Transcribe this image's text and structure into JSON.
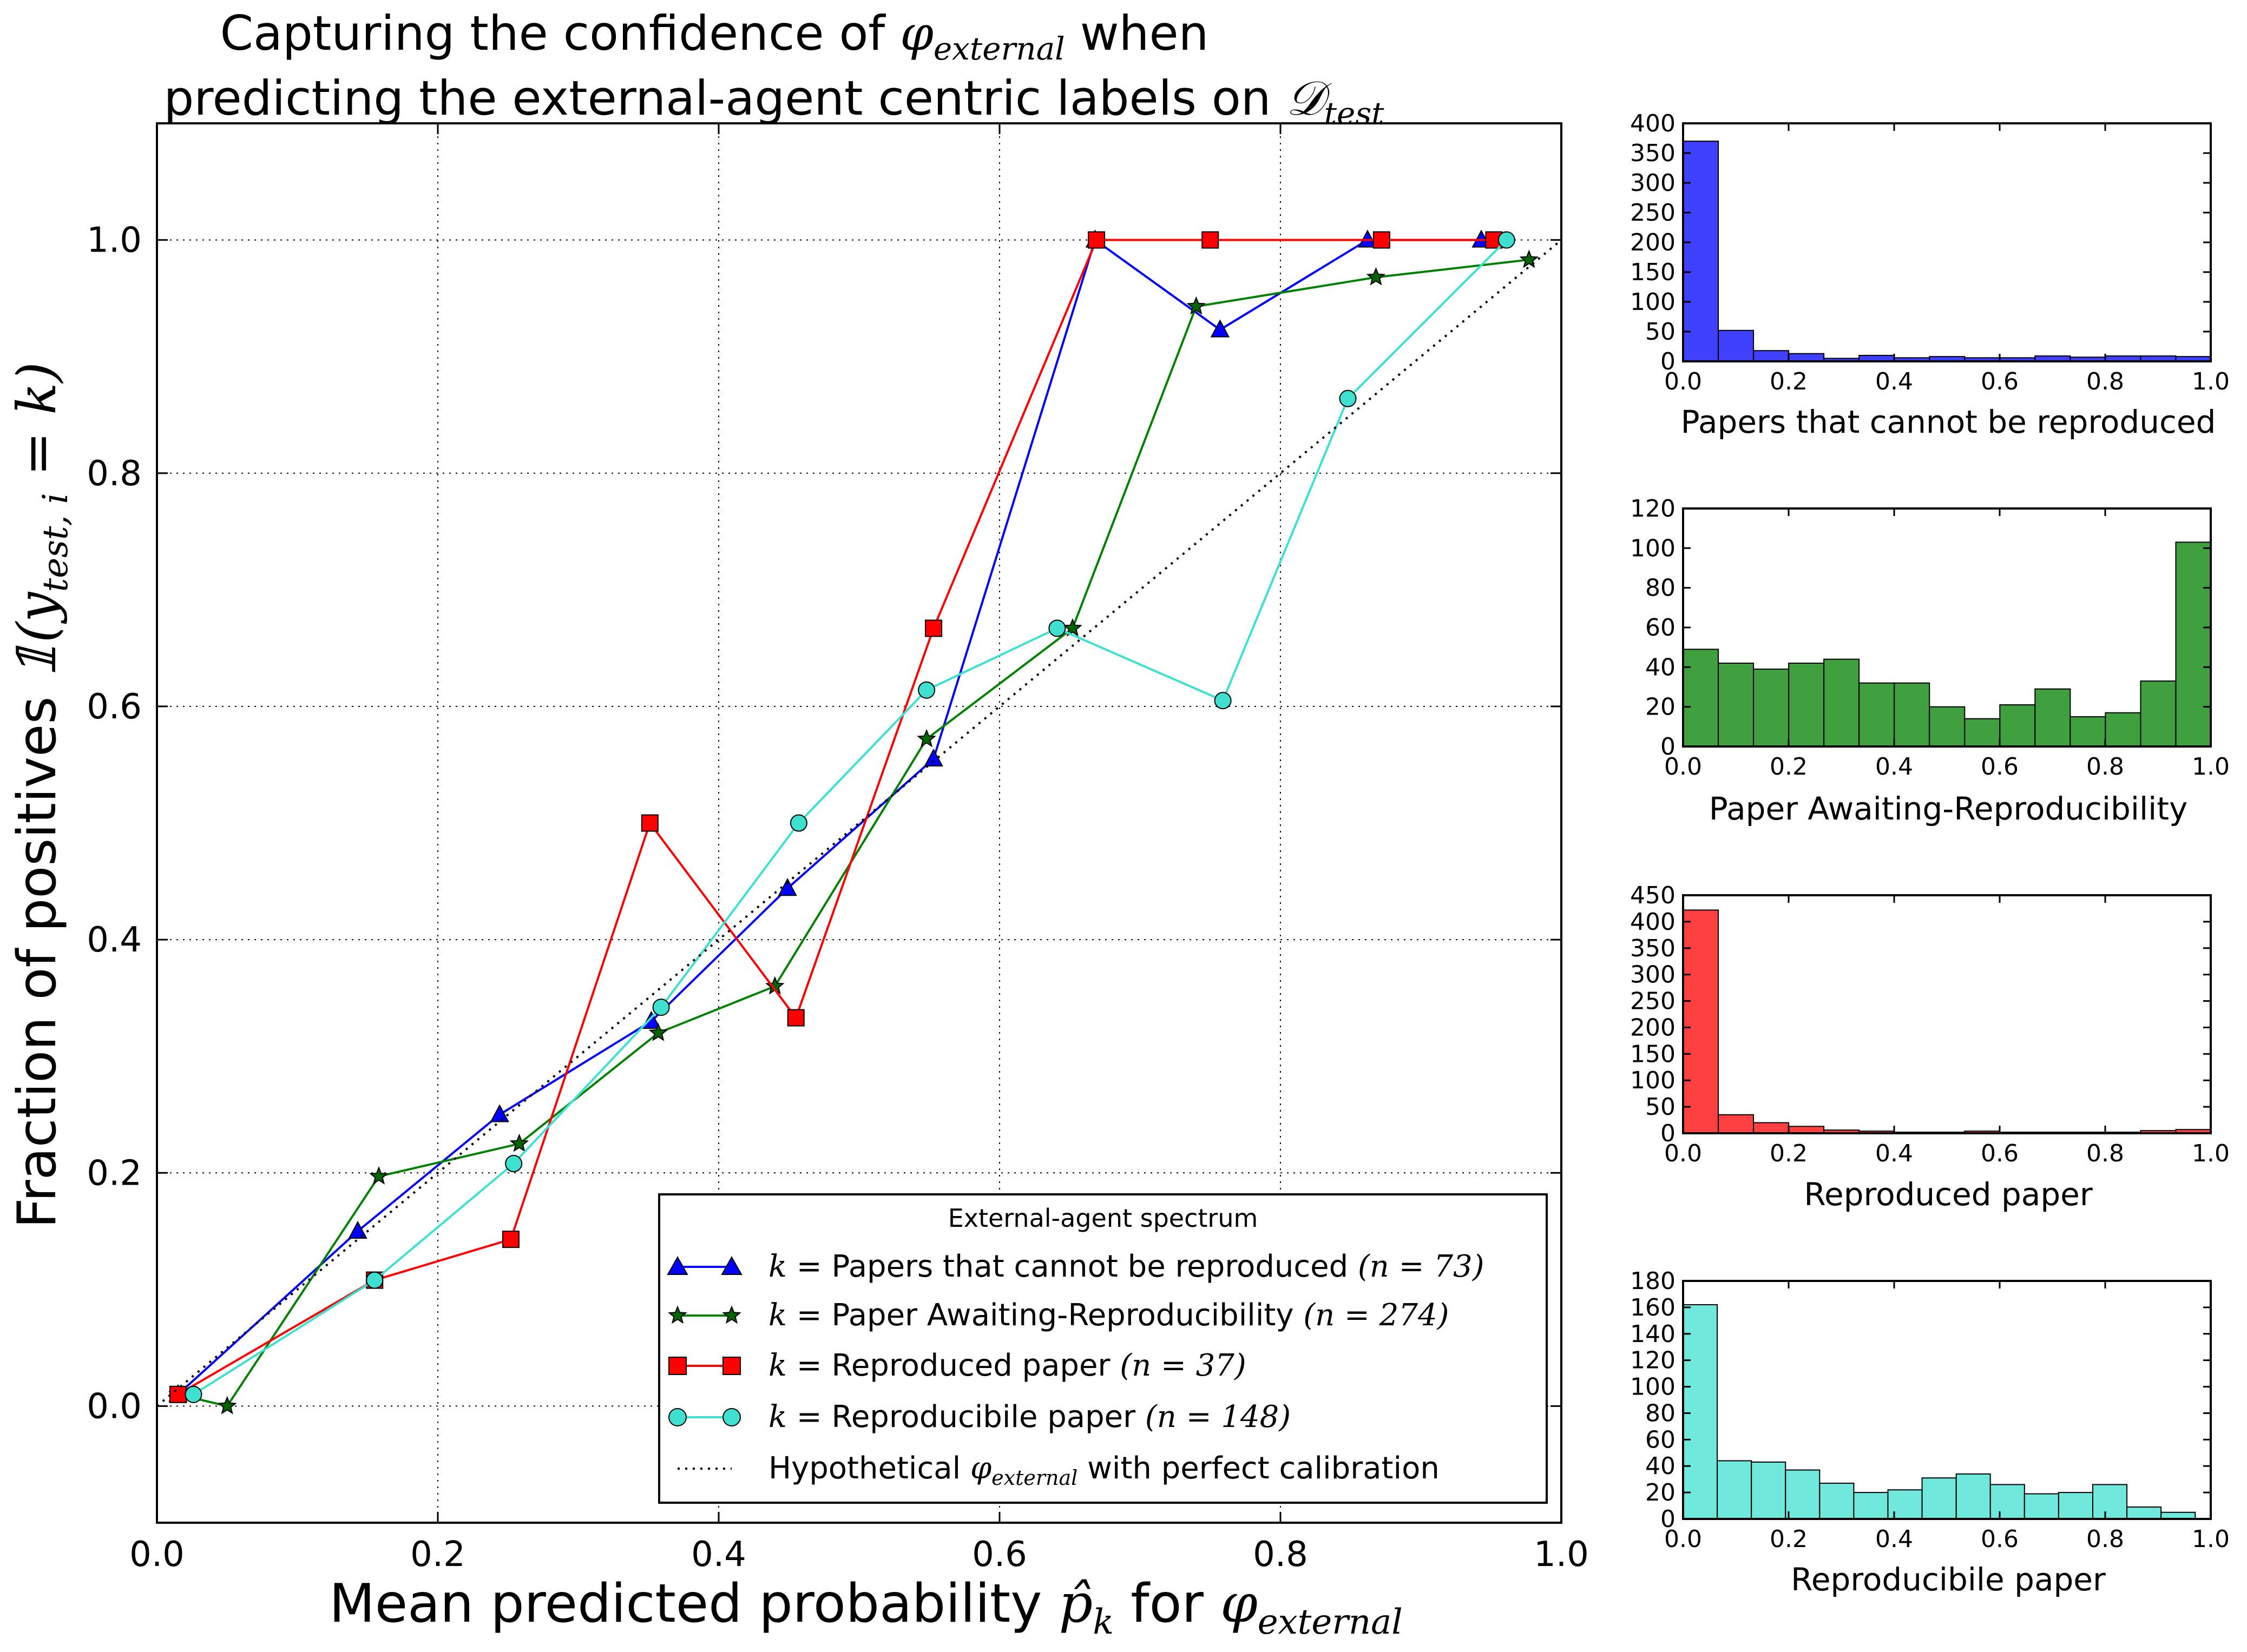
{
  "chart_data": [
    {
      "type": "line",
      "title_line1": "Capturing the confidence of ",
      "title_line1_math": "φ",
      "title_line1_sub": "external",
      "title_line1_end": " when",
      "title_line2": "predicting the external-agent centric labels on ",
      "title_line2_math": "𝒟",
      "title_line2_sub": "test",
      "xlabel": "Mean predicted probability ",
      "xlabel_math": "p̂",
      "xlabel_math_sub": "k",
      "xlabel_mid": " for ",
      "xlabel_math2": "φ",
      "xlabel_math2_sub": "external",
      "ylabel": "Fraction of positives ",
      "ylabel_math": "𝟙(y",
      "ylabel_math_sub": "test, i",
      "ylabel_math_end": " = k)",
      "xlim": [
        0.0,
        1.0
      ],
      "ylim": [
        -0.1,
        1.1
      ],
      "xticks": [
        0.0,
        0.2,
        0.4,
        0.6,
        0.8,
        1.0
      ],
      "yticks": [
        0.0,
        0.2,
        0.4,
        0.6,
        0.8,
        1.0
      ],
      "grid": true,
      "legend_title": "External-agent spectrum",
      "legend_placement": "lower right",
      "series": [
        {
          "name": "k = Papers that cannot be reproduced (n = 73)",
          "label_pre": "k",
          "label_text": " = Papers that cannot be reproduced ",
          "label_n": "(n = 73)",
          "color": "#0000ff",
          "marker": "triangle",
          "x": [
            0.015,
            0.143,
            0.244,
            0.352,
            0.449,
            0.553,
            0.668,
            0.757,
            0.862,
            0.943
          ],
          "y": [
            0.01,
            0.15,
            0.25,
            0.33,
            0.444,
            0.555,
            1.0,
            0.923,
            1.0,
            1.0
          ]
        },
        {
          "name": "k = Paper Awaiting-Reproducibility (n = 274)",
          "label_pre": "k",
          "label_text": " = Paper Awaiting-Reproducibility ",
          "label_n": "(n = 274)",
          "color": "#008000",
          "marker": "star",
          "x": [
            0.015,
            0.05,
            0.158,
            0.258,
            0.357,
            0.44,
            0.548,
            0.652,
            0.74,
            0.868,
            0.977
          ],
          "y": [
            0.01,
            0.0,
            0.197,
            0.225,
            0.32,
            0.36,
            0.572,
            0.667,
            0.943,
            0.968,
            0.983
          ]
        },
        {
          "name": "k = Reproduced paper (n = 37)",
          "label_pre": "k",
          "label_text": " = Reproduced paper ",
          "label_n": "(n = 37)",
          "color": "#ff0000",
          "marker": "square",
          "x": [
            0.015,
            0.155,
            0.252,
            0.351,
            0.455,
            0.553,
            0.669,
            0.75,
            0.872,
            0.952
          ],
          "y": [
            0.01,
            0.108,
            0.143,
            0.5,
            0.333,
            0.667,
            1.0,
            1.0,
            1.0,
            1.0
          ]
        },
        {
          "name": "k = Reproducibile paper (n = 148)",
          "label_pre": "k",
          "label_text": " = Reproducibile paper ",
          "label_n": "(n = 148)",
          "color": "#40e0d0",
          "marker": "circle",
          "x": [
            0.026,
            0.155,
            0.254,
            0.359,
            0.457,
            0.548,
            0.641,
            0.759,
            0.848,
            0.961
          ],
          "y": [
            0.01,
            0.108,
            0.208,
            0.342,
            0.5,
            0.614,
            0.667,
            0.605,
            0.864,
            1.0
          ]
        },
        {
          "name": "Hypothetical φexternal with perfect calibration",
          "label_text": "Hypothetical ",
          "label_math": "φ",
          "label_math_sub": "external",
          "label_end": " with perfect calibration",
          "color": "#000000",
          "marker": "none",
          "style": "dotted",
          "x": [
            0.0,
            1.0
          ],
          "y": [
            0.0,
            1.0
          ]
        }
      ]
    },
    {
      "type": "bar",
      "xlabel": "Papers that cannot be reproduced",
      "color": "#0000ff",
      "xlim": [
        0.0,
        1.0
      ],
      "ylim": [
        0,
        400
      ],
      "xticks": [
        0.0,
        0.2,
        0.4,
        0.6,
        0.8,
        1.0
      ],
      "yticks": [
        0,
        50,
        100,
        150,
        200,
        250,
        300,
        350,
        400
      ],
      "bin_width": 0.0667,
      "values": [
        370,
        52,
        18,
        13,
        5,
        10,
        6,
        8,
        6,
        6,
        9,
        7,
        9,
        9,
        8
      ]
    },
    {
      "type": "bar",
      "xlabel": "Paper Awaiting-Reproducibility",
      "color": "#008000",
      "xlim": [
        0.0,
        1.0
      ],
      "ylim": [
        0,
        120
      ],
      "xticks": [
        0.0,
        0.2,
        0.4,
        0.6,
        0.8,
        1.0
      ],
      "yticks": [
        0,
        20,
        40,
        60,
        80,
        100,
        120
      ],
      "bin_width": 0.0667,
      "values": [
        49,
        42,
        39,
        42,
        44,
        32,
        32,
        20,
        14,
        21,
        29,
        15,
        17,
        33,
        103
      ]
    },
    {
      "type": "bar",
      "xlabel": "Reproduced paper",
      "color": "#ff0000",
      "xlim": [
        0.0,
        1.0
      ],
      "ylim": [
        0,
        450
      ],
      "xticks": [
        0.0,
        0.2,
        0.4,
        0.6,
        0.8,
        1.0
      ],
      "yticks": [
        0,
        50,
        100,
        150,
        200,
        250,
        300,
        350,
        400,
        450
      ],
      "bin_width": 0.0667,
      "values": [
        422,
        35,
        20,
        13,
        6,
        4,
        2,
        2,
        4,
        2,
        2,
        2,
        2,
        5,
        7
      ]
    },
    {
      "type": "bar",
      "xlabel": "Reproducibile paper",
      "color": "#40e0d0",
      "xlim": [
        0.0,
        1.0
      ],
      "ylim": [
        0,
        180
      ],
      "xticks": [
        0.0,
        0.2,
        0.4,
        0.6,
        0.8,
        1.0
      ],
      "yticks": [
        0,
        20,
        40,
        60,
        80,
        100,
        120,
        140,
        160,
        180
      ],
      "bin_width": 0.0647,
      "values": [
        162,
        44,
        43,
        37,
        27,
        20,
        22,
        31,
        34,
        26,
        19,
        20,
        26,
        9,
        5
      ]
    }
  ]
}
